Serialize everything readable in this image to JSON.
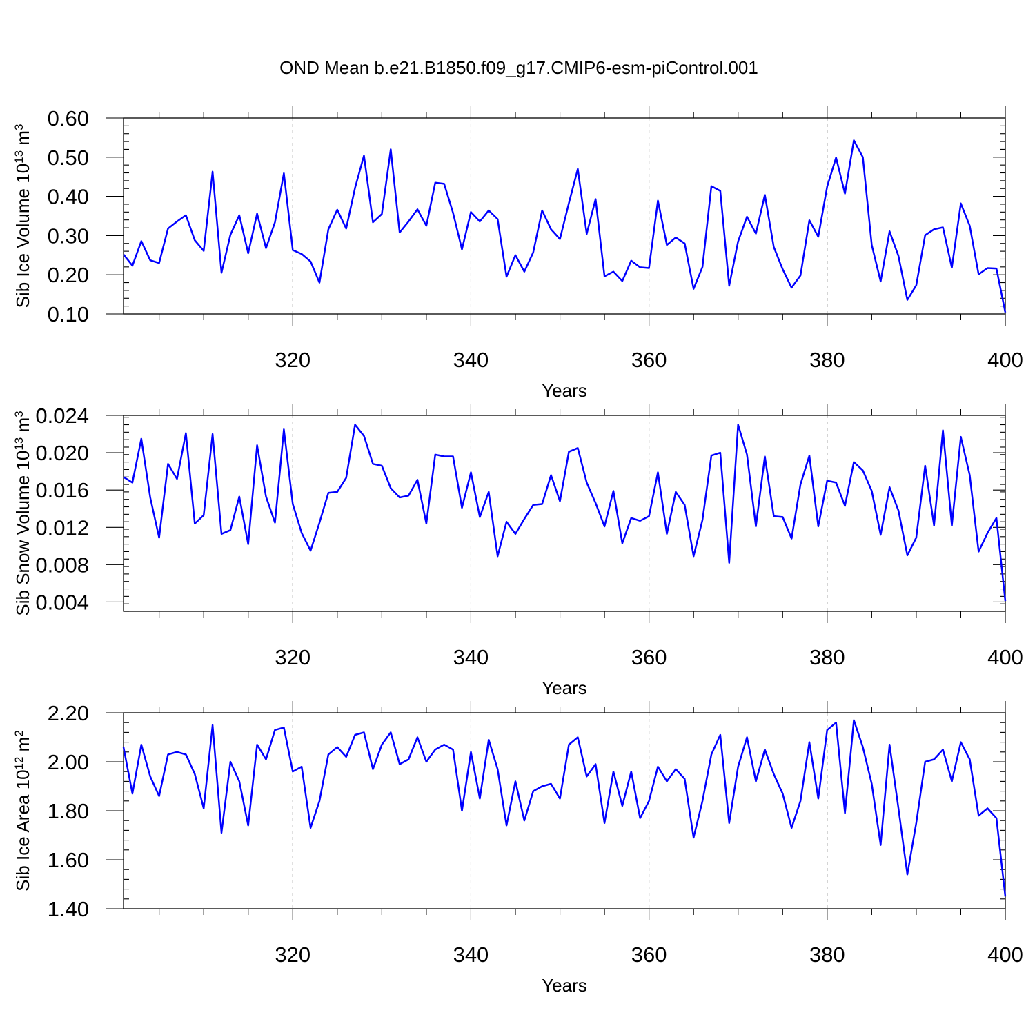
{
  "title": "OND Mean b.e21.B1850.f09_g17.CMIP6-esm-piControl.001",
  "colors": {
    "series": "#0000ff",
    "axes": "#000000",
    "grid": "#777777"
  },
  "chart_data": [
    {
      "type": "line",
      "id": "ice-volume",
      "xlabel": "Years",
      "ylabel_main": "Sib Ice Volume 10",
      "ylabel_exp": "13",
      "ylabel_unit": " m",
      "ylabel_unit_exp": "3",
      "xlim": [
        301,
        400
      ],
      "ylim": [
        0.1,
        0.6
      ],
      "xticks": [
        320,
        340,
        360,
        380,
        400
      ],
      "yticks": [
        0.1,
        0.2,
        0.3,
        0.4,
        0.5,
        0.6
      ],
      "ytick_labels": [
        "0.10",
        "0.20",
        "0.30",
        "0.40",
        "0.50",
        "0.60"
      ],
      "grid": "vertical dashed at major x ticks",
      "x_start": 301,
      "values": [
        0.252,
        0.223,
        0.286,
        0.237,
        0.23,
        0.318,
        0.336,
        0.352,
        0.288,
        0.261,
        0.463,
        0.205,
        0.302,
        0.352,
        0.255,
        0.356,
        0.268,
        0.334,
        0.459,
        0.263,
        0.253,
        0.234,
        0.18,
        0.316,
        0.366,
        0.318,
        0.422,
        0.504,
        0.334,
        0.355,
        0.52,
        0.308,
        0.336,
        0.367,
        0.325,
        0.435,
        0.432,
        0.358,
        0.265,
        0.36,
        0.336,
        0.364,
        0.342,
        0.195,
        0.25,
        0.208,
        0.257,
        0.364,
        0.316,
        0.291,
        0.383,
        0.47,
        0.304,
        0.393,
        0.196,
        0.208,
        0.184,
        0.236,
        0.219,
        0.217,
        0.389,
        0.276,
        0.295,
        0.28,
        0.164,
        0.22,
        0.426,
        0.414,
        0.172,
        0.285,
        0.348,
        0.305,
        0.404,
        0.271,
        0.214,
        0.167,
        0.198,
        0.339,
        0.297,
        0.425,
        0.499,
        0.407,
        0.543,
        0.5,
        0.276,
        0.183,
        0.311,
        0.248,
        0.136,
        0.173,
        0.301,
        0.316,
        0.321,
        0.218,
        0.382,
        0.325,
        0.201,
        0.217,
        0.216,
        0.104
      ]
    },
    {
      "type": "line",
      "id": "snow-volume",
      "xlabel": "Years",
      "ylabel_main": "Sib Snow Volume 10",
      "ylabel_exp": "13",
      "ylabel_unit": " m",
      "ylabel_unit_exp": "3",
      "xlim": [
        301,
        400
      ],
      "ylim": [
        0.003,
        0.024
      ],
      "xticks": [
        320,
        340,
        360,
        380,
        400
      ],
      "yticks": [
        0.004,
        0.008,
        0.012,
        0.016,
        0.02,
        0.024
      ],
      "ytick_labels": [
        "0.004",
        "0.008",
        "0.012",
        "0.016",
        "0.020",
        "0.024"
      ],
      "grid": "vertical dashed at major x ticks",
      "x_start": 301,
      "values": [
        0.0174,
        0.0168,
        0.0215,
        0.0152,
        0.0109,
        0.0188,
        0.0172,
        0.0221,
        0.0124,
        0.0133,
        0.022,
        0.0113,
        0.0117,
        0.0153,
        0.0102,
        0.0208,
        0.0153,
        0.0125,
        0.0225,
        0.0145,
        0.0114,
        0.0095,
        0.0125,
        0.0157,
        0.0158,
        0.0173,
        0.023,
        0.0218,
        0.0188,
        0.0186,
        0.0162,
        0.0152,
        0.0154,
        0.0171,
        0.0124,
        0.0198,
        0.0196,
        0.0196,
        0.0141,
        0.0179,
        0.0131,
        0.0158,
        0.0089,
        0.0126,
        0.0113,
        0.0129,
        0.0144,
        0.0145,
        0.0176,
        0.0148,
        0.0201,
        0.0205,
        0.0168,
        0.0146,
        0.0121,
        0.0159,
        0.0103,
        0.013,
        0.0127,
        0.0132,
        0.0179,
        0.0113,
        0.0158,
        0.0144,
        0.0089,
        0.0128,
        0.0197,
        0.02,
        0.0082,
        0.023,
        0.0198,
        0.0121,
        0.0196,
        0.0132,
        0.0131,
        0.0108,
        0.0166,
        0.0197,
        0.0121,
        0.017,
        0.0168,
        0.0143,
        0.019,
        0.0181,
        0.0159,
        0.0112,
        0.0163,
        0.0138,
        0.009,
        0.0109,
        0.0186,
        0.0122,
        0.0224,
        0.0122,
        0.0217,
        0.0176,
        0.0094,
        0.0114,
        0.013,
        0.0041
      ]
    },
    {
      "type": "line",
      "id": "ice-area",
      "xlabel": "Years",
      "ylabel_main": "Sib Ice Area 10",
      "ylabel_exp": "12",
      "ylabel_unit": " m",
      "ylabel_unit_exp": "2",
      "xlim": [
        301,
        400
      ],
      "ylim": [
        1.4,
        2.2
      ],
      "xticks": [
        320,
        340,
        360,
        380,
        400
      ],
      "yticks": [
        1.4,
        1.6,
        1.8,
        2.0,
        2.2
      ],
      "ytick_labels": [
        "1.40",
        "1.60",
        "1.80",
        "2.00",
        "2.20"
      ],
      "grid": "vertical dashed at major x ticks",
      "x_start": 301,
      "values": [
        2.06,
        1.87,
        2.07,
        1.94,
        1.86,
        2.03,
        2.04,
        2.03,
        1.95,
        1.81,
        2.15,
        1.71,
        2.0,
        1.92,
        1.74,
        2.07,
        2.01,
        2.13,
        2.14,
        1.96,
        1.98,
        1.73,
        1.84,
        2.03,
        2.06,
        2.02,
        2.11,
        2.12,
        1.97,
        2.07,
        2.12,
        1.99,
        2.01,
        2.1,
        2.0,
        2.05,
        2.07,
        2.05,
        1.8,
        2.04,
        1.85,
        2.09,
        1.97,
        1.74,
        1.92,
        1.76,
        1.88,
        1.9,
        1.91,
        1.85,
        2.07,
        2.1,
        1.94,
        1.99,
        1.75,
        1.96,
        1.82,
        1.96,
        1.77,
        1.84,
        1.98,
        1.92,
        1.97,
        1.93,
        1.69,
        1.84,
        2.03,
        2.11,
        1.75,
        1.98,
        2.1,
        1.92,
        2.05,
        1.95,
        1.87,
        1.73,
        1.84,
        2.08,
        1.85,
        2.13,
        2.16,
        1.79,
        2.17,
        2.06,
        1.91,
        1.66,
        2.07,
        1.81,
        1.54,
        1.75,
        2.0,
        2.01,
        2.05,
        1.92,
        2.08,
        2.01,
        1.78,
        1.81,
        1.77,
        1.45
      ]
    }
  ]
}
